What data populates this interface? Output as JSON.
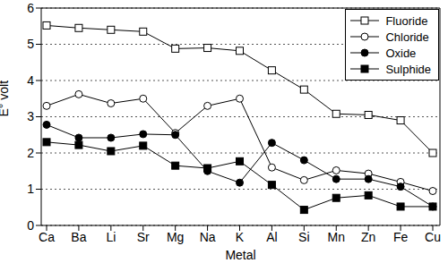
{
  "chart_data": {
    "type": "line",
    "x_label": "Metal",
    "y_label": "E° volt",
    "categories": [
      "Ca",
      "Ba",
      "Li",
      "Sr",
      "Mg",
      "Na",
      "K",
      "Al",
      "Si",
      "Mn",
      "Zn",
      "Fe",
      "Cu"
    ],
    "series": [
      {
        "name": "Fluoride",
        "color": "#000000",
        "marker": "square-open",
        "values": [
          5.52,
          5.45,
          5.4,
          5.35,
          4.88,
          4.9,
          4.82,
          4.28,
          3.75,
          3.08,
          3.05,
          2.9,
          2.0
        ]
      },
      {
        "name": "Chloride",
        "color": "#000000",
        "marker": "circle-open",
        "values": [
          3.3,
          3.62,
          3.37,
          3.5,
          2.55,
          3.3,
          3.5,
          1.6,
          1.25,
          1.52,
          1.43,
          1.2,
          0.95
        ]
      },
      {
        "name": "Oxide",
        "color": "#000000",
        "marker": "circle",
        "values": [
          2.78,
          2.42,
          2.42,
          2.52,
          2.5,
          1.5,
          1.18,
          2.28,
          1.8,
          1.28,
          1.28,
          1.07,
          0.52
        ]
      },
      {
        "name": "Sulphide",
        "color": "#000000",
        "marker": "square",
        "values": [
          2.3,
          2.22,
          2.05,
          2.2,
          1.65,
          1.58,
          1.77,
          1.12,
          0.43,
          0.76,
          0.83,
          0.52,
          0.52
        ]
      }
    ],
    "ylim": [
      0,
      6
    ],
    "yticks": [
      0,
      1,
      2,
      3,
      4,
      5,
      6
    ],
    "grid": true,
    "legend": "top-right"
  }
}
